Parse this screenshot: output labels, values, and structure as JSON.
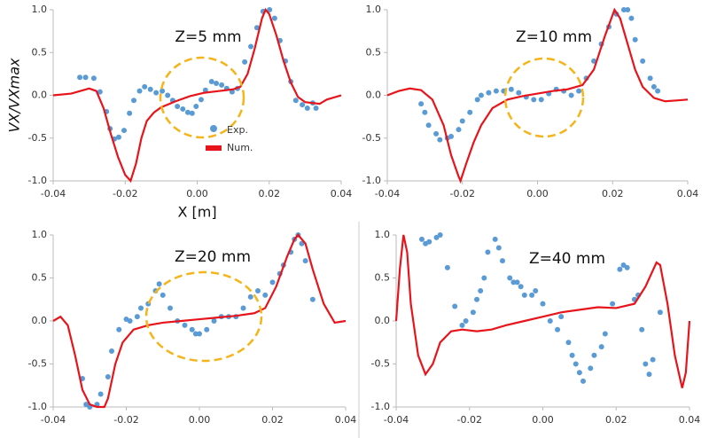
{
  "chart_data": [
    {
      "type": "scatter",
      "annotation": "Z=5 mm",
      "xlabel": "X [m]",
      "ylabel": "VX/VXmax",
      "legend": true,
      "xlim": [
        -0.04,
        0.04
      ],
      "ylim": [
        -1,
        1
      ],
      "xticks": [
        -0.04,
        -0.02,
        {
          "value": 0,
          "label": "0.00"
        },
        0.02,
        0.04
      ],
      "yticks": [
        {
          "value": -1,
          "label": "-1.0"
        },
        -0.5,
        {
          "value": 0,
          "label": "0.0"
        },
        0.5,
        {
          "value": 1,
          "label": "1.0"
        }
      ],
      "series": [
        {
          "name": "Exp.",
          "type": "scatter",
          "color": "#5b9bd5",
          "x": [
            -0.0326,
            -0.031,
            -0.0287,
            -0.027,
            -0.0252,
            -0.0242,
            -0.023,
            -0.0218,
            -0.0203,
            -0.0188,
            -0.0176,
            -0.016,
            -0.0146,
            -0.013,
            -0.0114,
            -0.0097,
            -0.0082,
            -0.0068,
            -0.0055,
            -0.004,
            -0.0026,
            -0.0014,
            -0.0003,
            0.0011,
            0.0023,
            0.004,
            0.0053,
            0.0068,
            0.0082,
            0.0097,
            0.0112,
            0.0132,
            0.0149,
            0.0166,
            0.0183,
            0.0201,
            0.0215,
            0.023,
            0.0245,
            0.026,
            0.0274,
            0.0292,
            0.0306,
            0.0321,
            0.033
          ],
          "values": [
            0.21,
            0.21,
            0.2,
            0.04,
            -0.19,
            -0.39,
            -0.51,
            -0.49,
            -0.41,
            -0.21,
            -0.06,
            0.05,
            0.1,
            0.07,
            0.03,
            0.05,
            0,
            -0.06,
            -0.13,
            -0.16,
            -0.2,
            -0.21,
            -0.13,
            -0.05,
            0.06,
            0.16,
            0.14,
            0.12,
            0.08,
            0.04,
            0.08,
            0.39,
            0.57,
            0.79,
            0.98,
            1.0,
            0.9,
            0.64,
            0.4,
            0.16,
            -0.06,
            -0.11,
            -0.15,
            -0.09,
            -0.15
          ]
        },
        {
          "name": "Num.",
          "type": "line",
          "color": "#e8141b",
          "x": [
            -0.04,
            -0.035,
            -0.03,
            -0.028,
            -0.026,
            -0.024,
            -0.022,
            -0.02,
            -0.0185,
            -0.017,
            -0.0155,
            -0.014,
            -0.012,
            -0.01,
            -0.006,
            -0.002,
            0.002,
            0.006,
            0.01,
            0.012,
            0.014,
            0.016,
            0.018,
            0.019,
            0.02,
            0.022,
            0.024,
            0.026,
            0.028,
            0.03,
            0.034,
            0.036,
            0.04
          ],
          "values": [
            0,
            0.02,
            0.08,
            0.05,
            -0.15,
            -0.45,
            -0.72,
            -0.93,
            -1.0,
            -0.8,
            -0.5,
            -0.3,
            -0.2,
            -0.14,
            -0.07,
            -0.01,
            0.03,
            0.05,
            0.07,
            0.1,
            0.25,
            0.55,
            0.9,
            1.0,
            0.95,
            0.7,
            0.4,
            0.15,
            -0.02,
            -0.08,
            -0.1,
            -0.05,
            0
          ]
        }
      ]
    },
    {
      "type": "scatter",
      "annotation": "Z=10 mm",
      "xlim": [
        -0.04,
        0.04
      ],
      "ylim": [
        -1,
        1
      ],
      "xticks": [
        -0.04,
        -0.02,
        {
          "value": 0,
          "label": "0.00"
        },
        0.02,
        0.04
      ],
      "yticks": [
        {
          "value": -1,
          "label": "-1.0"
        },
        -0.5,
        {
          "value": 0,
          "label": "0.0"
        },
        0.5,
        {
          "value": 1,
          "label": "1.0"
        }
      ],
      "series": [
        {
          "type": "scatter",
          "color": "#5b9bd5",
          "x": [
            -0.031,
            -0.03,
            -0.029,
            -0.027,
            -0.026,
            -0.024,
            -0.023,
            -0.021,
            -0.02,
            -0.018,
            -0.016,
            -0.015,
            -0.013,
            -0.011,
            -0.009,
            -0.007,
            -0.005,
            -0.003,
            -0.001,
            0.001,
            0.003,
            0.005,
            0.007,
            0.009,
            0.011,
            0.013,
            0.015,
            0.017,
            0.019,
            0.021,
            0.023,
            0.024,
            0.025,
            0.026,
            0.028,
            0.03,
            0.031,
            0.032
          ],
          "values": [
            -0.1,
            -0.2,
            -0.35,
            -0.45,
            -0.52,
            -0.5,
            -0.48,
            -0.4,
            -0.3,
            -0.2,
            -0.05,
            0,
            0.03,
            0.05,
            0.05,
            0.07,
            0.03,
            -0.02,
            -0.05,
            -0.05,
            0.02,
            0.07,
            0.05,
            0,
            0.05,
            0.2,
            0.4,
            0.6,
            0.8,
            0.95,
            1.0,
            1.0,
            0.9,
            0.65,
            0.4,
            0.2,
            0.1,
            0.05
          ]
        },
        {
          "type": "line",
          "color": "#e8141b",
          "x": [
            -0.04,
            -0.037,
            -0.034,
            -0.031,
            -0.028,
            -0.025,
            -0.023,
            -0.021,
            -0.0205,
            -0.019,
            -0.017,
            -0.015,
            -0.012,
            -0.008,
            -0.004,
            0,
            0.004,
            0.008,
            0.012,
            0.015,
            0.018,
            0.0205,
            0.022,
            0.024,
            0.026,
            0.028,
            0.031,
            0.034,
            0.037,
            0.04
          ],
          "values": [
            0,
            0.05,
            0.08,
            0.06,
            -0.05,
            -0.35,
            -0.7,
            -0.95,
            -1.0,
            -0.8,
            -0.55,
            -0.35,
            -0.15,
            -0.05,
            -0.01,
            0.02,
            0.05,
            0.07,
            0.12,
            0.3,
            0.7,
            1.0,
            0.9,
            0.6,
            0.3,
            0.1,
            -0.03,
            -0.07,
            -0.06,
            -0.05
          ]
        }
      ]
    },
    {
      "type": "scatter",
      "annotation": "Z=20 mm",
      "xlim": [
        -0.04,
        0.04
      ],
      "ylim": [
        -1,
        1
      ],
      "xticks": [
        -0.04,
        -0.02,
        {
          "value": 0,
          "label": "0.00"
        },
        0.02,
        0.04
      ],
      "yticks": [
        {
          "value": -1,
          "label": "-1.0"
        },
        -0.5,
        {
          "value": 0,
          "label": "0.0"
        },
        0.5,
        {
          "value": 1,
          "label": "1.0"
        }
      ],
      "series": [
        {
          "type": "scatter",
          "color": "#5b9bd5",
          "x": [
            -0.032,
            -0.031,
            -0.03,
            -0.028,
            -0.027,
            -0.025,
            -0.024,
            -0.022,
            -0.02,
            -0.019,
            -0.017,
            -0.016,
            -0.014,
            -0.012,
            -0.011,
            -0.01,
            -0.008,
            -0.006,
            -0.004,
            -0.002,
            -0.001,
            0,
            0.002,
            0.004,
            0.006,
            0.008,
            0.01,
            0.012,
            0.014,
            0.016,
            0.018,
            0.02,
            0.022,
            0.023,
            0.025,
            0.026,
            0.027,
            0.028,
            0.029,
            0.031
          ],
          "values": [
            -0.67,
            -0.97,
            -1.0,
            -0.97,
            -0.85,
            -0.65,
            -0.35,
            -0.1,
            0.02,
            0,
            0.05,
            0.15,
            0.2,
            0.35,
            0.43,
            0.3,
            0.15,
            0,
            -0.05,
            -0.1,
            -0.15,
            -0.15,
            -0.1,
            0,
            0.05,
            0.05,
            0.05,
            0.15,
            0.28,
            0.35,
            0.3,
            0.45,
            0.55,
            0.65,
            0.8,
            0.95,
            1.0,
            0.9,
            0.7,
            0.25
          ]
        },
        {
          "type": "line",
          "color": "#e8141b",
          "x": [
            -0.04,
            -0.038,
            -0.036,
            -0.034,
            -0.032,
            -0.03,
            -0.028,
            -0.026,
            -0.025,
            -0.023,
            -0.021,
            -0.018,
            -0.014,
            -0.01,
            -0.005,
            0,
            0.005,
            0.01,
            0.015,
            0.018,
            0.021,
            0.024,
            0.026,
            0.027,
            0.029,
            0.031,
            0.034,
            0.037,
            0.04
          ],
          "values": [
            0,
            0.05,
            -0.05,
            -0.4,
            -0.8,
            -0.97,
            -1.0,
            -1.0,
            -0.9,
            -0.5,
            -0.25,
            -0.1,
            -0.05,
            -0.02,
            0,
            0.02,
            0.04,
            0.06,
            0.09,
            0.15,
            0.4,
            0.75,
            0.95,
            1.0,
            0.9,
            0.6,
            0.2,
            -0.02,
            0
          ]
        }
      ]
    },
    {
      "type": "scatter",
      "annotation": "Z=40 mm",
      "xlim": [
        -0.04,
        0.04
      ],
      "ylim": [
        -1,
        1
      ],
      "xticks": [
        -0.04,
        -0.02,
        {
          "value": 0,
          "label": "0.00"
        },
        0.02,
        0.04
      ],
      "yticks": [
        {
          "value": -1,
          "label": "-1.0"
        },
        -0.5,
        {
          "value": 0,
          "label": "0.0"
        },
        0.5,
        {
          "value": 1,
          "label": "1.0"
        }
      ],
      "series": [
        {
          "type": "scatter",
          "color": "#5b9bd5",
          "x": [
            -0.033,
            -0.032,
            -0.031,
            -0.029,
            -0.028,
            -0.026,
            -0.024,
            -0.022,
            -0.021,
            -0.019,
            -0.018,
            -0.017,
            -0.016,
            -0.015,
            -0.013,
            -0.012,
            -0.011,
            -0.009,
            -0.008,
            -0.007,
            -0.006,
            -0.005,
            -0.003,
            -0.002,
            0,
            0.002,
            0.004,
            0.005,
            0.007,
            0.008,
            0.009,
            0.01,
            0.011,
            0.013,
            0.014,
            0.016,
            0.017,
            0.019,
            0.021,
            0.022,
            0.023,
            0.025,
            0.026,
            0.027,
            0.028,
            0.029,
            0.03,
            0.032
          ],
          "values": [
            0.95,
            0.9,
            0.92,
            0.97,
            1.0,
            0.62,
            0.17,
            -0.05,
            0,
            0.1,
            0.25,
            0.35,
            0.5,
            0.8,
            0.95,
            0.85,
            0.7,
            0.5,
            0.45,
            0.45,
            0.4,
            0.3,
            0.3,
            0.35,
            0.2,
            0,
            -0.1,
            0.05,
            -0.25,
            -0.4,
            -0.5,
            -0.6,
            -0.7,
            -0.55,
            -0.4,
            -0.3,
            -0.15,
            0.2,
            0.6,
            0.65,
            0.62,
            0.25,
            0.3,
            -0.1,
            -0.5,
            -0.62,
            -0.45,
            0.1
          ]
        },
        {
          "type": "line",
          "color": "#e8141b",
          "x": [
            -0.04,
            -0.039,
            -0.038,
            -0.037,
            -0.036,
            -0.034,
            -0.032,
            -0.03,
            -0.028,
            -0.025,
            -0.022,
            -0.018,
            -0.014,
            -0.01,
            -0.005,
            0,
            0.005,
            0.01,
            0.015,
            0.02,
            0.025,
            0.028,
            0.031,
            0.032,
            0.034,
            0.036,
            0.038,
            0.039,
            0.04
          ],
          "values": [
            0,
            0.6,
            1.0,
            0.8,
            0.2,
            -0.4,
            -0.62,
            -0.5,
            -0.25,
            -0.12,
            -0.1,
            -0.12,
            -0.1,
            -0.05,
            0,
            0.05,
            0.1,
            0.13,
            0.16,
            0.15,
            0.2,
            0.4,
            0.68,
            0.65,
            0.2,
            -0.4,
            -0.78,
            -0.6,
            0
          ]
        }
      ]
    }
  ]
}
